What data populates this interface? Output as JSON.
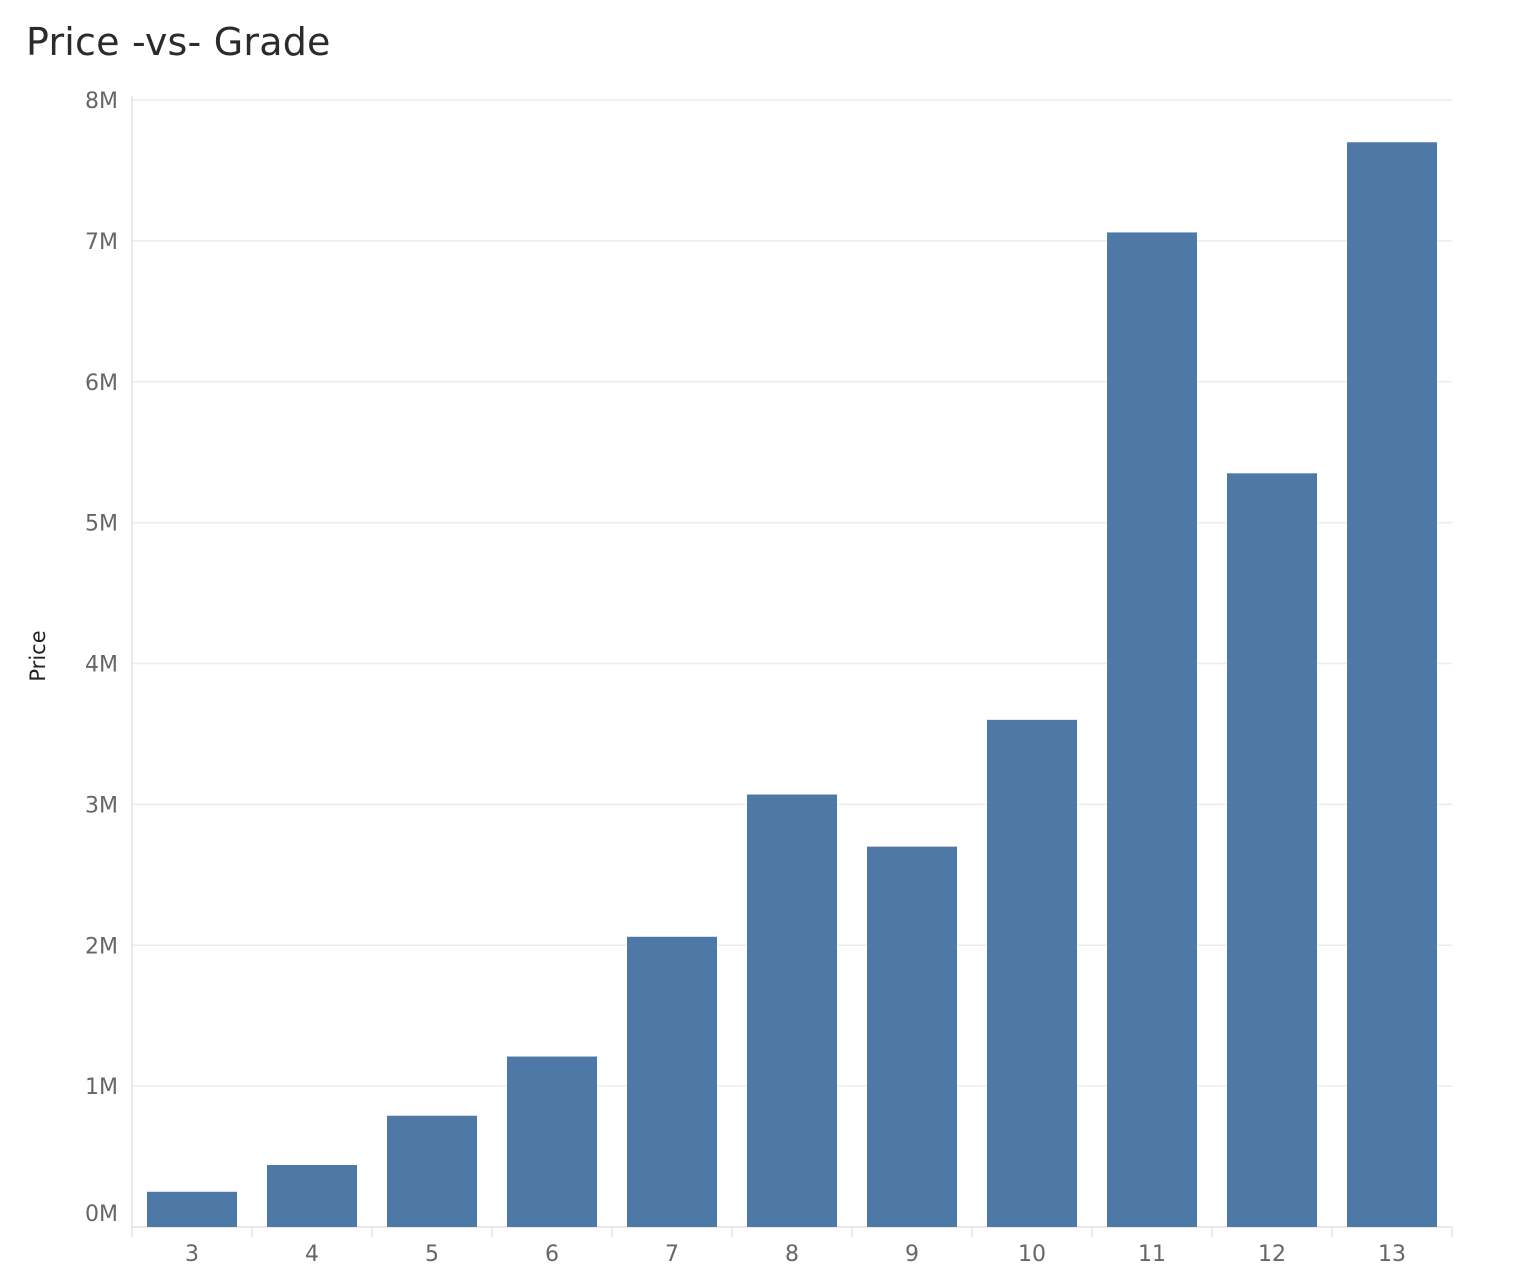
{
  "chart_data": {
    "type": "bar",
    "title": "Price -vs- Grade",
    "xlabel": "",
    "ylabel": "Price",
    "categories": [
      "3",
      "4",
      "5",
      "6",
      "7",
      "8",
      "9",
      "10",
      "11",
      "12",
      "13"
    ],
    "values": [
      250000,
      440000,
      790000,
      1210000,
      2060000,
      3070000,
      2700000,
      3600000,
      7060000,
      5350000,
      7700000
    ],
    "ylim": [
      0,
      8000000
    ],
    "yticks": [
      {
        "value": 0,
        "label": "0M"
      },
      {
        "value": 1000000,
        "label": "1M"
      },
      {
        "value": 2000000,
        "label": "2M"
      },
      {
        "value": 3000000,
        "label": "3M"
      },
      {
        "value": 4000000,
        "label": "4M"
      },
      {
        "value": 5000000,
        "label": "5M"
      },
      {
        "value": 6000000,
        "label": "6M"
      },
      {
        "value": 7000000,
        "label": "7M"
      },
      {
        "value": 8000000,
        "label": "8M"
      }
    ],
    "grid": true,
    "bar_color": "#4e79a7"
  }
}
